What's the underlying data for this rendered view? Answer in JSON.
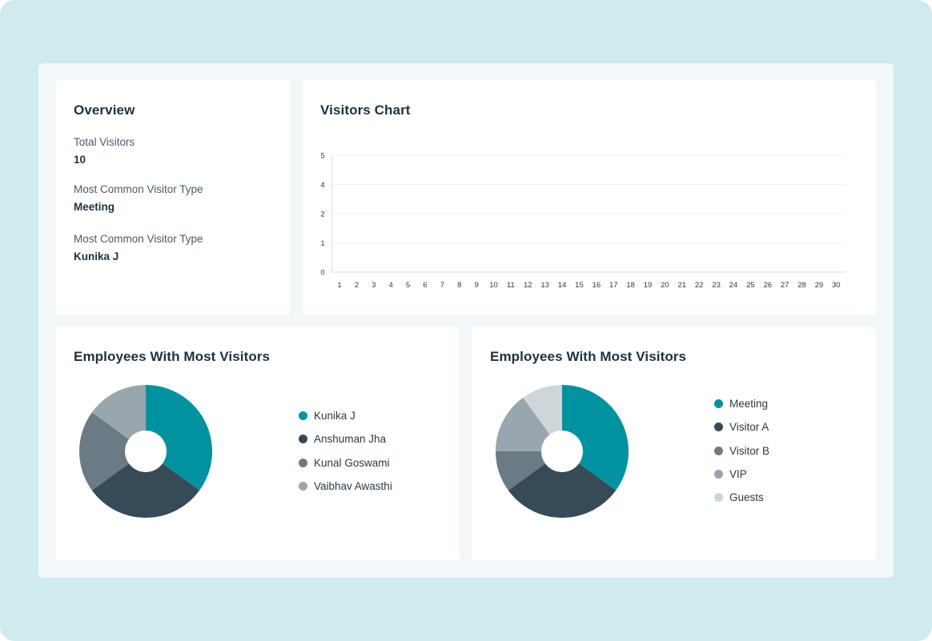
{
  "overview": {
    "title": "Overview",
    "total_visitors_label": "Total Visitors",
    "total_visitors_value": "10",
    "common_type_label": "Most Common Visitor Type",
    "common_type_value": "Meeting",
    "common_type_label_2": "Most Common Visitor Type",
    "common_type_value_2": "Kunika J"
  },
  "visitors_chart": {
    "title": "Visitors Chart"
  },
  "chart_data": [
    {
      "type": "bar",
      "title": "Visitors Chart",
      "xlabel": "",
      "ylabel": "",
      "categories": [
        "1",
        "2",
        "3",
        "4",
        "5",
        "6",
        "7",
        "8",
        "9",
        "10",
        "11",
        "12",
        "13",
        "14",
        "15",
        "16",
        "17",
        "18",
        "19",
        "20",
        "21",
        "22",
        "23",
        "24",
        "25",
        "26",
        "27",
        "28",
        "29",
        "30"
      ],
      "values": [
        0,
        0,
        0,
        0,
        0,
        0,
        0,
        0,
        0,
        0,
        0,
        0,
        0,
        0,
        0,
        0,
        0,
        0,
        0,
        0,
        0,
        0,
        0,
        0,
        0,
        0,
        0,
        0,
        0,
        0
      ],
      "y_ticks": [
        "0",
        "1",
        "2",
        "4",
        "5"
      ],
      "grid": true
    },
    {
      "type": "pie",
      "title": "Employees With Most Visitors",
      "categories": [
        "Kunika J",
        "Anshuman Jha",
        "Kunal Goswami",
        "Vaibhav Awasthi"
      ],
      "values": [
        35,
        30,
        20,
        15
      ],
      "colors": [
        "#00939f",
        "#364a57",
        "#6b7b85",
        "#9aa6ad"
      ],
      "donut": true,
      "legend": "right"
    },
    {
      "type": "pie",
      "title": "Employees With Most Visitors",
      "categories": [
        "Meeting",
        "Visitor A",
        "Visitor B",
        "VIP",
        "Guests"
      ],
      "values": [
        35,
        30,
        10,
        15,
        10
      ],
      "colors": [
        "#00939f",
        "#364a57",
        "#6b7b85",
        "#9aa6ad",
        "#cfd6da"
      ],
      "donut": true,
      "legend": "right"
    }
  ]
}
